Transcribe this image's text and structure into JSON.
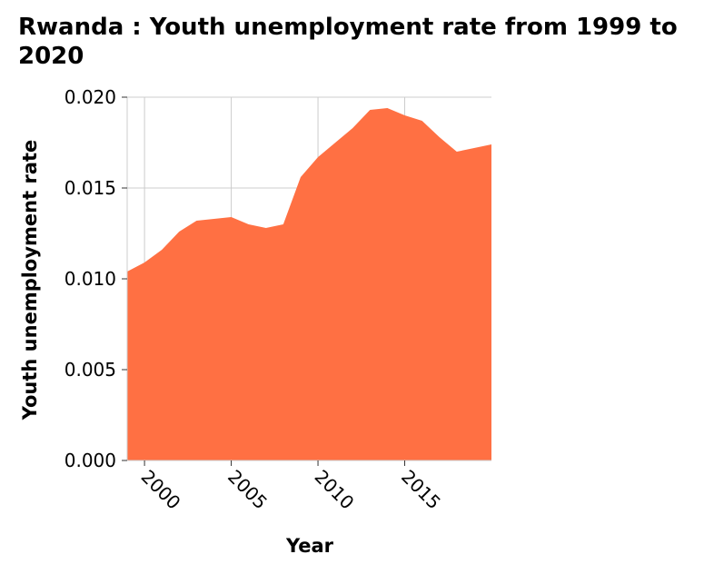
{
  "chart_data": {
    "type": "area",
    "title": "Rwanda : Youth unemployment rate from 1999 to 2020",
    "xlabel": "Year",
    "ylabel": "Youth unemployment rate",
    "x": [
      1999,
      2000,
      2001,
      2002,
      2003,
      2004,
      2005,
      2006,
      2007,
      2008,
      2009,
      2010,
      2011,
      2012,
      2013,
      2014,
      2015,
      2016,
      2017,
      2018,
      2019,
      2020
    ],
    "series": [
      {
        "values": [
          0.0104,
          0.0109,
          0.0116,
          0.0126,
          0.0132,
          0.0133,
          0.0134,
          0.013,
          0.0128,
          0.013,
          0.0156,
          0.0167,
          0.0175,
          0.0183,
          0.0193,
          0.0194,
          0.019,
          0.0187,
          0.0178,
          0.017,
          0.0172,
          0.0174
        ],
        "color": "#ff7043"
      }
    ],
    "xlim": [
      1999,
      2020
    ],
    "ylim": [
      0.0,
      0.02
    ],
    "xticks": [
      2000,
      2005,
      2010,
      2015
    ],
    "xtick_labels": [
      "2000",
      "2005",
      "2010",
      "2015"
    ],
    "yticks": [
      0.0,
      0.005,
      0.01,
      0.015,
      0.02
    ],
    "ytick_labels": [
      "0.000",
      "0.005",
      "0.010",
      "0.015",
      "0.020"
    ],
    "grid": true,
    "grid_color": "#cccccc",
    "axis_color": "#cccccc"
  }
}
